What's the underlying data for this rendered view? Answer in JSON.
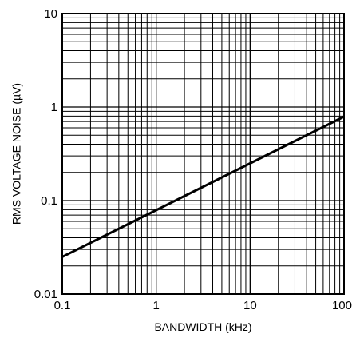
{
  "chart_data": {
    "type": "line",
    "xscale": "log",
    "yscale": "log",
    "xlim": [
      0.1,
      100
    ],
    "ylim": [
      0.01,
      10
    ],
    "xlabel": "BANDWIDTH (kHz)",
    "ylabel": "RMS VOLTAGE NOISE (µV)",
    "grid": true,
    "xticks": [
      {
        "value": 0.1,
        "label": "0.1"
      },
      {
        "value": 1,
        "label": "1"
      },
      {
        "value": 10,
        "label": "10"
      },
      {
        "value": 100,
        "label": "100"
      }
    ],
    "yticks": [
      {
        "value": 0.01,
        "label": "0.01"
      },
      {
        "value": 0.1,
        "label": "0.1"
      },
      {
        "value": 1,
        "label": "1"
      },
      {
        "value": 10,
        "label": "10"
      }
    ],
    "series": [
      {
        "x": [
          0.1,
          100
        ],
        "y": [
          0.025,
          0.79
        ]
      }
    ],
    "colors": {
      "line": "#000000",
      "grid": "#000000",
      "background": "#ffffff"
    }
  }
}
